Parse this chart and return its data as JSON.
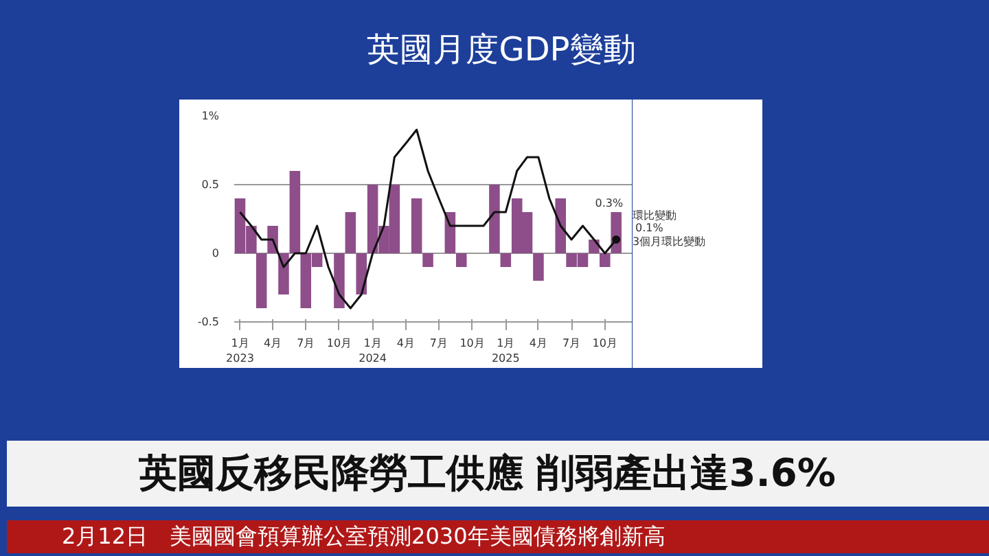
{
  "chart_data": {
    "type": "bar",
    "title": "英國月度GDP變動",
    "x": [
      "2023-01",
      "2023-02",
      "2023-03",
      "2023-04",
      "2023-05",
      "2023-06",
      "2023-07",
      "2023-08",
      "2023-09",
      "2023-10",
      "2023-11",
      "2023-12",
      "2024-01",
      "2024-02",
      "2024-03",
      "2024-04",
      "2024-05",
      "2024-06",
      "2024-07",
      "2024-08",
      "2024-09",
      "2024-10",
      "2024-11",
      "2024-12",
      "2025-01",
      "2025-02",
      "2025-03",
      "2025-04",
      "2025-05",
      "2025-06",
      "2025-07",
      "2025-08",
      "2025-09",
      "2025-10",
      "2025-11"
    ],
    "series": [
      {
        "name": "環比變動",
        "color": "#8e4e8a",
        "values": [
          0.4,
          0.2,
          -0.4,
          0.2,
          -0.3,
          0.6,
          -0.4,
          -0.1,
          0,
          -0.4,
          0.3,
          -0.3,
          0.5,
          0.2,
          0.5,
          0,
          0.4,
          -0.1,
          0,
          0.3,
          -0.1,
          0,
          0,
          0.5,
          -0.1,
          0.4,
          0.3,
          -0.2,
          0,
          0.4,
          -0.1,
          -0.1,
          0.1,
          -0.1,
          0.3
        ],
        "value_labels": [
          null,
          null,
          null,
          null,
          null,
          null,
          null,
          null,
          null,
          null,
          null,
          null,
          null,
          null,
          null,
          null,
          null,
          null,
          null,
          null,
          null,
          null,
          null,
          null,
          null,
          null,
          null,
          null,
          null,
          null,
          null,
          null,
          null,
          null,
          "0.3%"
        ]
      },
      {
        "name": "3個月環比變動",
        "type": "line",
        "color": "#111111",
        "values": [
          0.3,
          0.2,
          0.1,
          0.1,
          -0.1,
          0,
          0,
          0.2,
          -0.1,
          -0.3,
          -0.4,
          -0.3,
          0,
          0.2,
          0.7,
          0.8,
          0.9,
          0.6,
          0.4,
          0.2,
          0.2,
          0.2,
          0.2,
          0.3,
          0.3,
          0.6,
          0.7,
          0.7,
          0.4,
          0.2,
          0.1,
          0.2,
          0.1,
          0,
          0.1
        ],
        "value_labels": [
          null,
          null,
          null,
          null,
          null,
          null,
          null,
          null,
          null,
          null,
          null,
          null,
          null,
          null,
          null,
          null,
          null,
          null,
          null,
          null,
          null,
          null,
          null,
          null,
          null,
          null,
          null,
          null,
          null,
          null,
          null,
          null,
          null,
          null,
          "0.1%"
        ]
      }
    ],
    "xlim": [
      "2022-12-16",
      "2025-12-16"
    ],
    "xticks": [
      {
        "value": "2023-01",
        "label": "1月\n2023"
      },
      {
        "value": "2023-04",
        "label": "4月"
      },
      {
        "value": "2023-07",
        "label": "7月"
      },
      {
        "value": "2023-10",
        "label": "10月"
      },
      {
        "value": "2024-01",
        "label": "1月\n2024"
      },
      {
        "value": "2024-04",
        "label": "4月"
      },
      {
        "value": "2024-07",
        "label": "7月"
      },
      {
        "value": "2024-10",
        "label": "10月"
      },
      {
        "value": "2025-01",
        "label": "1月\n2025"
      },
      {
        "value": "2025-04",
        "label": "4月"
      },
      {
        "value": "2025-07",
        "label": "7月"
      },
      {
        "value": "2025-10",
        "label": "10月"
      }
    ],
    "ylim": [
      -0.5,
      1
    ],
    "yticks": [
      {
        "value": 1,
        "label": "1%"
      },
      0.5,
      0,
      -0.5
    ],
    "grid": "y",
    "annotations": [
      "英國反移民降勞工供應 削弱產出達3.6%",
      "2月12日",
      "美國國會預算辦公室預測2030年美國債務將創新高"
    ]
  }
}
